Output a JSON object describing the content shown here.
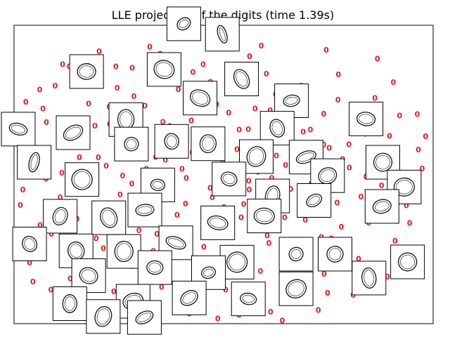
{
  "chart_data": {
    "type": "scatter",
    "title": "LLE projection of the digits (time 1.39s)",
    "xlabel": "",
    "ylabel": "",
    "xlim": [
      0,
      1
    ],
    "ylim": [
      0,
      1
    ],
    "axis_ticks": "none",
    "grid": false,
    "legend": "none",
    "marker": "0",
    "marker_color": "#e31a1c",
    "points": [
      [
        0.203,
        0.913
      ],
      [
        0.349,
        0.905
      ],
      [
        0.562,
        0.896
      ],
      [
        0.132,
        0.862
      ],
      [
        0.282,
        0.858
      ],
      [
        0.427,
        0.843
      ],
      [
        0.602,
        0.838
      ],
      [
        0.774,
        0.835
      ],
      [
        0.098,
        0.798
      ],
      [
        0.246,
        0.791
      ],
      [
        0.392,
        0.786
      ],
      [
        0.515,
        0.774
      ],
      [
        0.658,
        0.769
      ],
      [
        0.861,
        0.757
      ],
      [
        0.028,
        0.744
      ],
      [
        0.178,
        0.738
      ],
      [
        0.312,
        0.731
      ],
      [
        0.463,
        0.72
      ],
      [
        0.611,
        0.715
      ],
      [
        0.739,
        0.704
      ],
      [
        0.92,
        0.698
      ],
      [
        0.077,
        0.675
      ],
      [
        0.228,
        0.669
      ],
      [
        0.371,
        0.662
      ],
      [
        0.537,
        0.651
      ],
      [
        0.69,
        0.644
      ],
      [
        0.838,
        0.637
      ],
      [
        0.142,
        0.624
      ],
      [
        0.293,
        0.615
      ],
      [
        0.449,
        0.606
      ],
      [
        0.587,
        0.598
      ],
      [
        0.752,
        0.589
      ],
      [
        0.965,
        0.584
      ],
      [
        0.052,
        0.565
      ],
      [
        0.201,
        0.558
      ],
      [
        0.361,
        0.549
      ],
      [
        0.498,
        0.54
      ],
      [
        0.648,
        0.532
      ],
      [
        0.8,
        0.523
      ],
      [
        0.114,
        0.506
      ],
      [
        0.259,
        0.497
      ],
      [
        0.411,
        0.488
      ],
      [
        0.56,
        0.479
      ],
      [
        0.709,
        0.47
      ],
      [
        0.877,
        0.463
      ],
      [
        0.021,
        0.45
      ],
      [
        0.169,
        0.441
      ],
      [
        0.322,
        0.432
      ],
      [
        0.473,
        0.423
      ],
      [
        0.622,
        0.414
      ],
      [
        0.771,
        0.406
      ],
      [
        0.936,
        0.397
      ],
      [
        0.085,
        0.383
      ],
      [
        0.237,
        0.374
      ],
      [
        0.389,
        0.365
      ],
      [
        0.542,
        0.357
      ],
      [
        0.695,
        0.348
      ],
      [
        0.846,
        0.339
      ],
      [
        0.146,
        0.322
      ],
      [
        0.298,
        0.313
      ],
      [
        0.452,
        0.304
      ],
      [
        0.604,
        0.295
      ],
      [
        0.757,
        0.286
      ],
      [
        0.909,
        0.278
      ],
      [
        0.061,
        0.262
      ],
      [
        0.213,
        0.253
      ],
      [
        0.366,
        0.244
      ],
      [
        0.52,
        0.236
      ],
      [
        0.673,
        0.227
      ],
      [
        0.822,
        0.218
      ],
      [
        0.128,
        0.202
      ],
      [
        0.281,
        0.193
      ],
      [
        0.434,
        0.184
      ],
      [
        0.588,
        0.176
      ],
      [
        0.74,
        0.167
      ],
      [
        0.891,
        0.158
      ],
      [
        0.045,
        0.141
      ],
      [
        0.198,
        0.132
      ],
      [
        0.352,
        0.123
      ],
      [
        0.505,
        0.114
      ],
      [
        0.657,
        0.105
      ],
      [
        0.809,
        0.097
      ],
      [
        0.112,
        0.081
      ],
      [
        0.265,
        0.072
      ],
      [
        0.419,
        0.063
      ],
      [
        0.573,
        0.054
      ],
      [
        0.726,
        0.046
      ],
      [
        0.179,
        0.034
      ],
      [
        0.331,
        0.026
      ],
      [
        0.486,
        0.018
      ],
      [
        0.64,
        0.011
      ],
      [
        0.243,
        0.862
      ],
      [
        0.469,
        0.811
      ],
      [
        0.685,
        0.798
      ],
      [
        0.355,
        0.677
      ],
      [
        0.512,
        0.707
      ],
      [
        0.156,
        0.558
      ],
      [
        0.425,
        0.574
      ],
      [
        0.626,
        0.563
      ],
      [
        0.784,
        0.552
      ],
      [
        0.281,
        0.469
      ],
      [
        0.488,
        0.478
      ],
      [
        0.66,
        0.452
      ],
      [
        0.207,
        0.393
      ],
      [
        0.548,
        0.401
      ],
      [
        0.724,
        0.382
      ],
      [
        0.341,
        0.301
      ],
      [
        0.453,
        0.258
      ],
      [
        0.608,
        0.271
      ],
      [
        0.791,
        0.258
      ],
      [
        0.167,
        0.229
      ],
      [
        0.309,
        0.164
      ],
      [
        0.478,
        0.154
      ],
      [
        0.64,
        0.151
      ],
      [
        0.238,
        0.108
      ],
      [
        0.397,
        0.098
      ],
      [
        0.567,
        0.085
      ],
      [
        0.134,
        0.152
      ],
      [
        0.076,
        0.486
      ],
      [
        0.892,
        0.541
      ],
      [
        0.935,
        0.472
      ],
      [
        0.021,
        0.602
      ],
      [
        0.069,
        0.721
      ],
      [
        0.116,
        0.87
      ],
      [
        0.324,
        0.928
      ],
      [
        0.59,
        0.932
      ],
      [
        0.745,
        0.918
      ],
      [
        0.867,
        0.888
      ],
      [
        0.905,
        0.81
      ],
      [
        0.962,
        0.702
      ],
      [
        0.982,
        0.628
      ],
      [
        0.974,
        0.52
      ],
      [
        0.956,
        0.431
      ],
      [
        0.944,
        0.338
      ],
      [
        0.912,
        0.248
      ],
      [
        0.865,
        0.178
      ],
      [
        0.816,
        0.141
      ],
      [
        0.748,
        0.103
      ],
      [
        0.689,
        0.072
      ],
      [
        0.612,
        0.04
      ],
      [
        0.537,
        0.029
      ],
      [
        0.418,
        0.034
      ],
      [
        0.295,
        0.044
      ],
      [
        0.204,
        0.053
      ],
      [
        0.158,
        0.087
      ],
      [
        0.088,
        0.114
      ],
      [
        0.037,
        0.205
      ],
      [
        0.019,
        0.309
      ],
      [
        0.015,
        0.398
      ],
      [
        0.027,
        0.525
      ],
      [
        0.039,
        0.65
      ],
      [
        0.061,
        0.785
      ],
      [
        0.193,
        0.664
      ],
      [
        0.263,
        0.607
      ],
      [
        0.338,
        0.559
      ],
      [
        0.401,
        0.519
      ],
      [
        0.471,
        0.62
      ],
      [
        0.532,
        0.585
      ],
      [
        0.582,
        0.51
      ],
      [
        0.634,
        0.638
      ],
      [
        0.683,
        0.597
      ],
      [
        0.722,
        0.53
      ],
      [
        0.751,
        0.463
      ],
      [
        0.696,
        0.411
      ],
      [
        0.646,
        0.357
      ],
      [
        0.587,
        0.335
      ],
      [
        0.519,
        0.305
      ],
      [
        0.464,
        0.347
      ],
      [
        0.409,
        0.402
      ],
      [
        0.354,
        0.44
      ],
      [
        0.296,
        0.386
      ],
      [
        0.247,
        0.329
      ],
      [
        0.196,
        0.286
      ],
      [
        0.15,
        0.352
      ],
      [
        0.11,
        0.423
      ],
      [
        0.123,
        0.621
      ],
      [
        0.227,
        0.727
      ],
      [
        0.286,
        0.762
      ],
      [
        0.347,
        0.817
      ],
      [
        0.411,
        0.76
      ],
      [
        0.451,
        0.87
      ],
      [
        0.541,
        0.857
      ],
      [
        0.624,
        0.77
      ],
      [
        0.575,
        0.721
      ],
      [
        0.666,
        0.713
      ],
      [
        0.707,
        0.651
      ],
      [
        0.818,
        0.703
      ],
      [
        0.799,
        0.601
      ],
      [
        0.84,
        0.493
      ],
      [
        0.828,
        0.426
      ],
      [
        0.869,
        0.364
      ],
      [
        0.781,
        0.325
      ],
      [
        0.733,
        0.291
      ],
      [
        0.697,
        0.187
      ],
      [
        0.553,
        0.208
      ],
      [
        0.403,
        0.223
      ],
      [
        0.332,
        0.244
      ],
      [
        0.271,
        0.287
      ],
      [
        0.089,
        0.301
      ],
      [
        0.062,
        0.331
      ],
      [
        0.253,
        0.433
      ],
      [
        0.468,
        0.455
      ],
      [
        0.501,
        0.391
      ],
      [
        0.561,
        0.449
      ],
      [
        0.615,
        0.488
      ],
      [
        0.373,
        0.487
      ],
      [
        0.316,
        0.519
      ],
      [
        0.188,
        0.488
      ],
      [
        0.22,
        0.529
      ],
      [
        0.423,
        0.681
      ],
      [
        0.483,
        0.735
      ],
      [
        0.559,
        0.652
      ],
      [
        0.6,
        0.603
      ],
      [
        0.739,
        0.6
      ],
      [
        0.773,
        0.751
      ],
      [
        0.896,
        0.63
      ]
    ],
    "thumbnails": [
      [
        0.405,
        1.005,
        "3"
      ],
      [
        0.497,
        0.97,
        "1"
      ],
      [
        0.173,
        0.845,
        "6"
      ],
      [
        0.358,
        0.852,
        "0"
      ],
      [
        0.543,
        0.82,
        "0"
      ],
      [
        0.662,
        0.747,
        "0"
      ],
      [
        0.84,
        0.686,
        "0"
      ],
      [
        0.444,
        0.756,
        "0"
      ],
      [
        0.628,
        0.655,
        "0"
      ],
      [
        0.267,
        0.684,
        "6"
      ],
      [
        0.01,
        0.652,
        "6"
      ],
      [
        0.141,
        0.64,
        "0"
      ],
      [
        0.376,
        0.611,
        "0"
      ],
      [
        0.463,
        0.603,
        "0"
      ],
      [
        0.578,
        0.56,
        "0"
      ],
      [
        0.697,
        0.558,
        "0"
      ],
      [
        0.28,
        0.602,
        "2"
      ],
      [
        0.048,
        0.541,
        "1"
      ],
      [
        0.88,
        0.541,
        "0"
      ],
      [
        0.162,
        0.483,
        "0"
      ],
      [
        0.343,
        0.465,
        "0"
      ],
      [
        0.513,
        0.485,
        "0"
      ],
      [
        0.748,
        0.496,
        "0"
      ],
      [
        0.931,
        0.458,
        "0"
      ],
      [
        0.617,
        0.428,
        "0"
      ],
      [
        0.716,
        0.413,
        "0"
      ],
      [
        0.878,
        0.393,
        "0"
      ],
      [
        0.597,
        0.361,
        "0"
      ],
      [
        0.11,
        0.36,
        "0"
      ],
      [
        0.226,
        0.355,
        "0"
      ],
      [
        0.312,
        0.381,
        "6"
      ],
      [
        0.486,
        0.338,
        "0"
      ],
      [
        0.037,
        0.267,
        "0"
      ],
      [
        0.148,
        0.244,
        "0"
      ],
      [
        0.262,
        0.242,
        "6"
      ],
      [
        0.386,
        0.271,
        "0"
      ],
      [
        0.673,
        0.233,
        "0"
      ],
      [
        0.766,
        0.233,
        "0"
      ],
      [
        0.939,
        0.207,
        "0"
      ],
      [
        0.532,
        0.206,
        "0"
      ],
      [
        0.464,
        0.171,
        "0"
      ],
      [
        0.336,
        0.188,
        "0"
      ],
      [
        0.178,
        0.161,
        "0"
      ],
      [
        0.673,
        0.117,
        "0"
      ],
      [
        0.847,
        0.153,
        "0"
      ],
      [
        0.559,
        0.083,
        "0"
      ],
      [
        0.418,
        0.086,
        "0"
      ],
      [
        0.284,
        0.075,
        "0"
      ],
      [
        0.133,
        0.067,
        "0"
      ],
      [
        0.213,
        0.024,
        "0"
      ],
      [
        0.311,
        0.021,
        "0"
      ]
    ]
  }
}
